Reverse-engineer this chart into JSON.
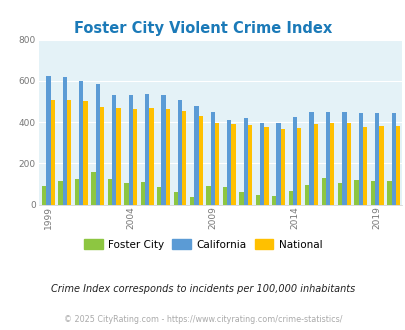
{
  "title": "Foster City Violent Crime Index",
  "title_color": "#1b7ab8",
  "subtitle": "Crime Index corresponds to incidents per 100,000 inhabitants",
  "footer": "© 2025 CityRating.com - https://www.cityrating.com/crime-statistics/",
  "years": [
    1999,
    2000,
    2001,
    2002,
    2003,
    2004,
    2005,
    2006,
    2007,
    2008,
    2009,
    2010,
    2011,
    2012,
    2013,
    2014,
    2015,
    2016,
    2017,
    2018,
    2019,
    2020
  ],
  "foster_city": [
    88,
    113,
    122,
    160,
    122,
    103,
    110,
    83,
    60,
    38,
    88,
    85,
    63,
    48,
    43,
    65,
    97,
    127,
    103,
    117,
    115,
    115
  ],
  "california": [
    622,
    620,
    598,
    585,
    533,
    530,
    534,
    530,
    508,
    480,
    450,
    410,
    422,
    398,
    396,
    427,
    451,
    450,
    449,
    445,
    445,
    445
  ],
  "national": [
    508,
    506,
    500,
    475,
    466,
    463,
    470,
    465,
    455,
    428,
    398,
    389,
    386,
    374,
    365,
    373,
    389,
    395,
    398,
    378,
    379,
    379
  ],
  "foster_color": "#8dc641",
  "california_color": "#5b9bd5",
  "national_color": "#ffc000",
  "plot_bg_color": "#e4f2f7",
  "ylim": [
    0,
    800
  ],
  "yticks": [
    0,
    200,
    400,
    600,
    800
  ],
  "bar_width": 0.26,
  "label_years": [
    1999,
    2004,
    2009,
    2014,
    2019
  ],
  "subtitle_color": "#222222",
  "footer_color": "#aaaaaa",
  "grid_color": "#ffffff"
}
